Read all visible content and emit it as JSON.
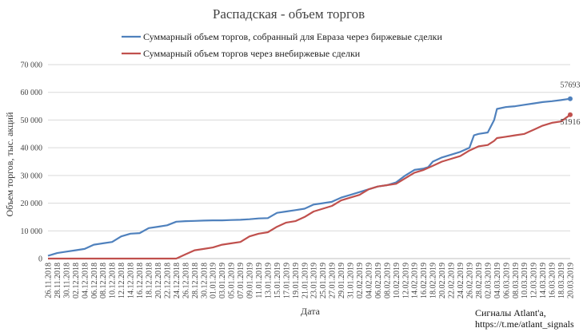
{
  "chart_data": {
    "type": "line",
    "title": "Распадская - объем торгов",
    "xlabel": "Дата",
    "ylabel": "Объем торгов, тыс. акций",
    "ylim": [
      0,
      70000
    ],
    "y_ticks": [
      "0",
      "10 000",
      "20 000",
      "30 000",
      "40 000",
      "50 000",
      "60 000",
      "70 000"
    ],
    "grid": true,
    "legend_placement": "top",
    "x_ticks": [
      "26.11.2018",
      "28.11.2018",
      "30.11.2018",
      "02.12.2018",
      "04.12.2018",
      "06.12.2018",
      "08.12.2018",
      "10.12.2018",
      "12.12.2018",
      "14.12.2018",
      "16.12.2018",
      "18.12.2018",
      "20.12.2018",
      "22.12.2018",
      "24.12.2018",
      "26.12.2018",
      "28.12.2018",
      "30.12.2018",
      "01.01.2019",
      "03.01.2019",
      "05.01.2019",
      "07.01.2019",
      "09.01.2019",
      "11.01.2019",
      "13.01.2019",
      "15.01.2019",
      "17.01.2019",
      "19.01.2019",
      "21.01.2019",
      "23.01.2019",
      "25.01.2019",
      "27.01.2019",
      "29.01.2019",
      "31.01.2019",
      "02.02.2019",
      "04.02.2019",
      "06.02.2019",
      "08.02.2019",
      "10.02.2019",
      "12.02.2019",
      "14.02.2019",
      "16.02.2019",
      "18.02.2019",
      "20.02.2019",
      "22.02.2019",
      "24.02.2019",
      "26.02.2019",
      "28.02.2019",
      "02.03.2019",
      "04.03.2019",
      "06.03.2019",
      "08.03.2019",
      "10.03.2019",
      "12.03.2019",
      "14.03.2019",
      "16.03.2019",
      "18.03.2019",
      "20.03.2019"
    ],
    "series": [
      {
        "name": "Суммарный объем торгов, собранный для Евраза через биржевые сделки",
        "color": "#4f81bd",
        "end_label": "57693",
        "points": [
          [
            0,
            1000
          ],
          [
            0.5,
            1500
          ],
          [
            1,
            2000
          ],
          [
            2,
            2500
          ],
          [
            3,
            3000
          ],
          [
            4,
            3500
          ],
          [
            5,
            5000
          ],
          [
            6,
            5500
          ],
          [
            7,
            6000
          ],
          [
            8,
            8000
          ],
          [
            9,
            9000
          ],
          [
            10,
            9200
          ],
          [
            11,
            11000
          ],
          [
            12,
            11500
          ],
          [
            13,
            12000
          ],
          [
            14,
            13300
          ],
          [
            15,
            13500
          ],
          [
            16,
            13600
          ],
          [
            17,
            13700
          ],
          [
            18,
            13800
          ],
          [
            19,
            13800
          ],
          [
            20,
            13900
          ],
          [
            21,
            14000
          ],
          [
            22,
            14200
          ],
          [
            23,
            14500
          ],
          [
            24,
            14600
          ],
          [
            25,
            16500
          ],
          [
            26,
            17000
          ],
          [
            27,
            17500
          ],
          [
            28,
            18000
          ],
          [
            29,
            19500
          ],
          [
            30,
            20000
          ],
          [
            31,
            20500
          ],
          [
            32,
            22000
          ],
          [
            33,
            23000
          ],
          [
            34,
            24000
          ],
          [
            35,
            25000
          ],
          [
            36,
            26000
          ],
          [
            37,
            26500
          ],
          [
            38,
            27500
          ],
          [
            39,
            30000
          ],
          [
            40,
            32000
          ],
          [
            41,
            32500
          ],
          [
            41.5,
            33000
          ],
          [
            42,
            35000
          ],
          [
            43,
            36500
          ],
          [
            44,
            37500
          ],
          [
            45,
            38500
          ],
          [
            46,
            40000
          ],
          [
            46.5,
            44500
          ],
          [
            47,
            45000
          ],
          [
            48,
            45500
          ],
          [
            48.7,
            50000
          ],
          [
            49,
            54000
          ],
          [
            50,
            54700
          ],
          [
            51,
            55000
          ],
          [
            52,
            55500
          ],
          [
            53,
            56000
          ],
          [
            54,
            56500
          ],
          [
            55,
            56800
          ],
          [
            56,
            57200
          ],
          [
            57,
            57693
          ]
        ]
      },
      {
        "name": "Суммарный объем торгов через внебиржевые сделки",
        "color": "#c0504d",
        "end_label": "51916",
        "points": [
          [
            0,
            0
          ],
          [
            14,
            0
          ],
          [
            15,
            1500
          ],
          [
            16,
            3000
          ],
          [
            17,
            3500
          ],
          [
            18,
            4000
          ],
          [
            19,
            5000
          ],
          [
            20,
            5500
          ],
          [
            21,
            6000
          ],
          [
            22,
            8000
          ],
          [
            23,
            9000
          ],
          [
            24,
            9500
          ],
          [
            25,
            11500
          ],
          [
            26,
            13000
          ],
          [
            27,
            13500
          ],
          [
            28,
            15000
          ],
          [
            29,
            17000
          ],
          [
            30,
            18000
          ],
          [
            31,
            19000
          ],
          [
            32,
            21000
          ],
          [
            33,
            22000
          ],
          [
            34,
            23000
          ],
          [
            35,
            25000
          ],
          [
            36,
            26000
          ],
          [
            37,
            26500
          ],
          [
            38,
            27000
          ],
          [
            39,
            29000
          ],
          [
            40,
            31000
          ],
          [
            41,
            32000
          ],
          [
            42,
            33500
          ],
          [
            43,
            35000
          ],
          [
            44,
            36000
          ],
          [
            45,
            37000
          ],
          [
            46,
            39000
          ],
          [
            47,
            40500
          ],
          [
            48,
            41000
          ],
          [
            48.7,
            42500
          ],
          [
            49,
            43500
          ],
          [
            50,
            44000
          ],
          [
            51,
            44500
          ],
          [
            52,
            45000
          ],
          [
            53,
            46500
          ],
          [
            54,
            48000
          ],
          [
            55,
            49000
          ],
          [
            56,
            49500
          ],
          [
            57,
            51916
          ]
        ]
      }
    ]
  },
  "credit": {
    "line1": "Сигналы Atlant'a,",
    "line2": "https://t.me/atlant_signals"
  }
}
